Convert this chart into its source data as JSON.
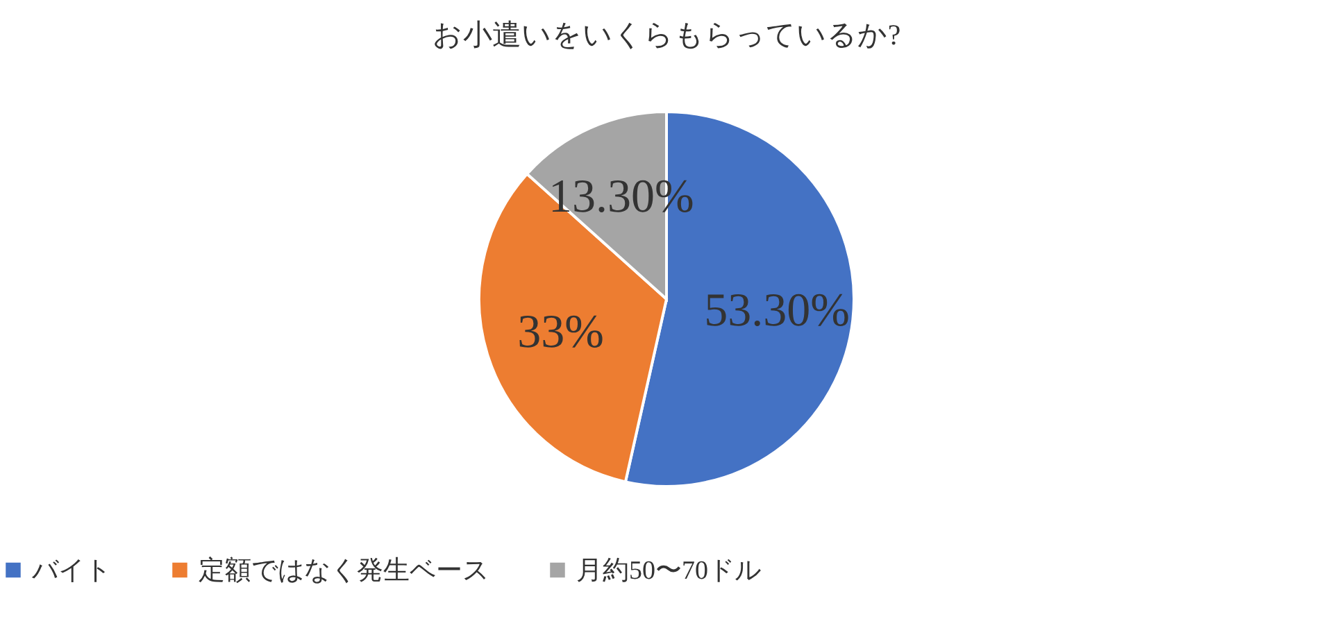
{
  "chart_data": {
    "type": "pie",
    "title": "お小遣いをいくらもらっているか?",
    "categories": [
      "バイト",
      "定額ではなく発生ベース",
      "月約50〜70ドル"
    ],
    "values": [
      53.3,
      33,
      13.3
    ],
    "value_labels": [
      "53.30%",
      "33%",
      "13.30%"
    ],
    "colors": [
      "#4472c4",
      "#ed7d31",
      "#a5a5a5"
    ],
    "legend": "bottom"
  }
}
